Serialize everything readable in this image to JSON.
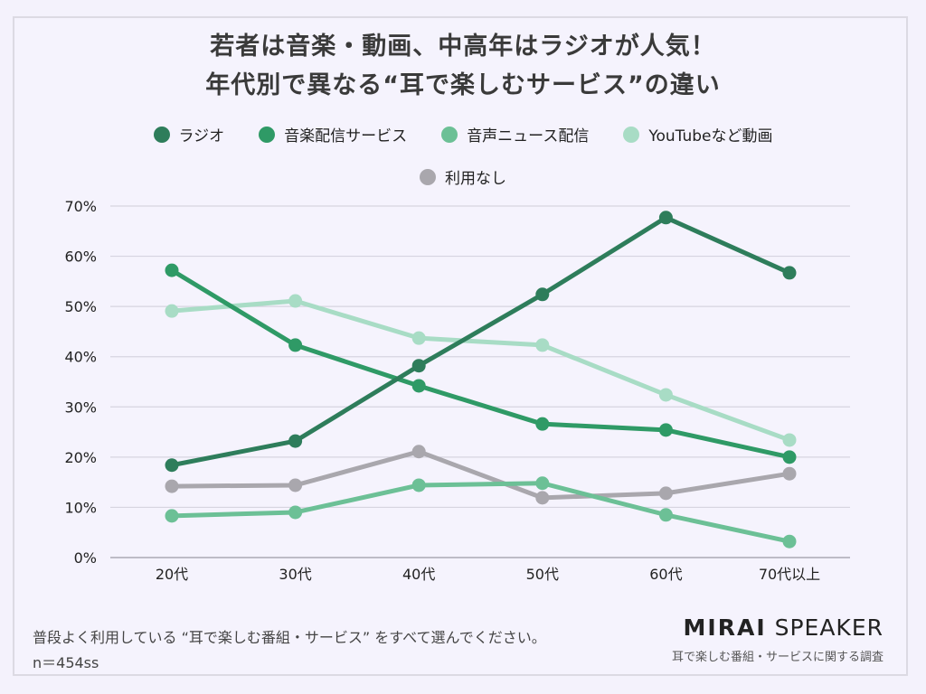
{
  "title": {
    "line1": "若者は音楽・動画、中高年はラジオが人気！",
    "line2": "年代別で異なる“耳で楽しむサービス”の違い"
  },
  "footer": {
    "question": "普段よく利用している “耳で楽しむ番組・サービス” をすべて選んでください。",
    "sample": "n＝454ss",
    "brand_bold": "MIRAI",
    "brand_light": "SPEAKER",
    "brand_sub": "耳で楽しむ番組・サービスに関する調査"
  },
  "chart_data": {
    "type": "line",
    "title": "若者は音楽・動画、中高年はラジオが人気！ 年代別で異なる“耳で楽しむサービス”の違い",
    "xlabel": "",
    "ylabel": "",
    "categories": [
      "20代",
      "30代",
      "40代",
      "50代",
      "60代",
      "70代以上"
    ],
    "ylim": [
      0,
      70
    ],
    "yticks": [
      0,
      10,
      20,
      30,
      40,
      50,
      60,
      70
    ],
    "ytick_labels": [
      "0%",
      "10%",
      "20%",
      "30%",
      "40%",
      "50%",
      "60%",
      "70%"
    ],
    "grid": true,
    "legend_position": "top",
    "series": [
      {
        "name": "ラジオ",
        "color": "#2e7d5b",
        "values": [
          18.4,
          23.2,
          38.2,
          52.4,
          67.7,
          56.7
        ]
      },
      {
        "name": "音楽配信サービス",
        "color": "#2f9a66",
        "values": [
          57.2,
          42.3,
          34.2,
          26.6,
          25.4,
          20.0
        ]
      },
      {
        "name": "音声ニュース配信",
        "color": "#6cc096",
        "values": [
          8.3,
          9.0,
          14.4,
          14.8,
          8.5,
          3.2
        ]
      },
      {
        "name": "YouTubeなど動画",
        "color": "#a8dcc5",
        "values": [
          49.1,
          51.1,
          43.7,
          42.3,
          32.4,
          23.4
        ]
      },
      {
        "name": "利用なし",
        "color": "#a9a7ad",
        "values": [
          14.2,
          14.4,
          21.1,
          11.9,
          12.8,
          16.7
        ]
      }
    ]
  }
}
